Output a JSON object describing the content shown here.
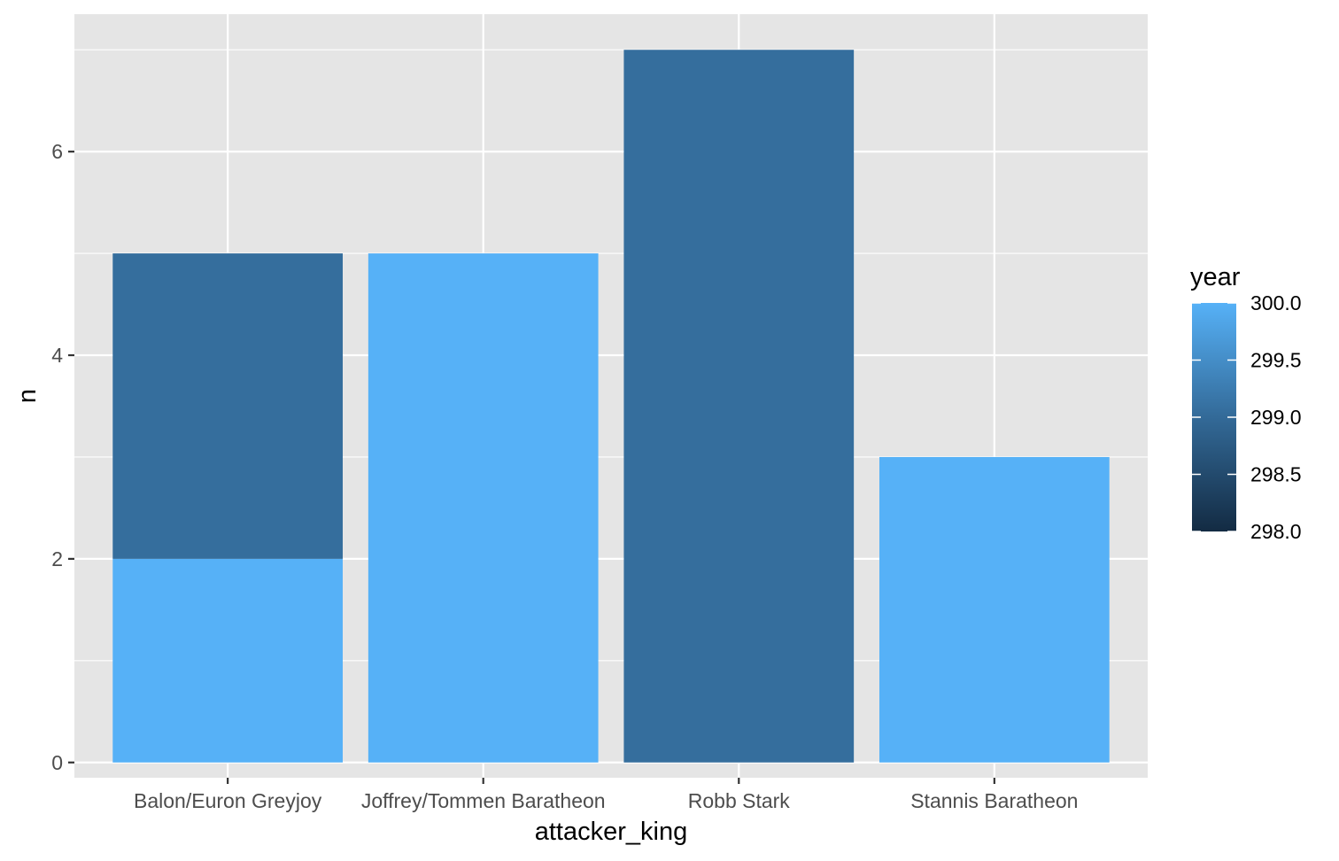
{
  "chart_data": {
    "type": "bar",
    "stacked": true,
    "categories": [
      "Balon/Euron Greyjoy",
      "Joffrey/Tommen Baratheon",
      "Robb Stark",
      "Stannis Baratheon"
    ],
    "segments": [
      {
        "category": "Balon/Euron Greyjoy",
        "year": 300,
        "n": 2
      },
      {
        "category": "Balon/Euron Greyjoy",
        "year": 299,
        "n": 3
      },
      {
        "category": "Joffrey/Tommen Baratheon",
        "year": 300,
        "n": 5
      },
      {
        "category": "Robb Stark",
        "year": 299,
        "n": 7
      },
      {
        "category": "Stannis Baratheon",
        "year": 300,
        "n": 3
      }
    ],
    "xlabel": "attacker_king",
    "ylabel": "n",
    "ylim": [
      -0.15,
      7.35
    ],
    "yticks": [
      "0",
      "2",
      "4",
      "6"
    ],
    "legend": {
      "title": "year",
      "position": "right",
      "range": [
        298.0,
        300.0
      ],
      "labels": [
        "298.0",
        "298.5",
        "299.0",
        "299.5",
        "300.0"
      ],
      "color_low": "#132B43",
      "color_high": "#56B1F7"
    },
    "grid": true,
    "panel_background": "#e5e5e5",
    "grid_color": "#ffffff"
  }
}
